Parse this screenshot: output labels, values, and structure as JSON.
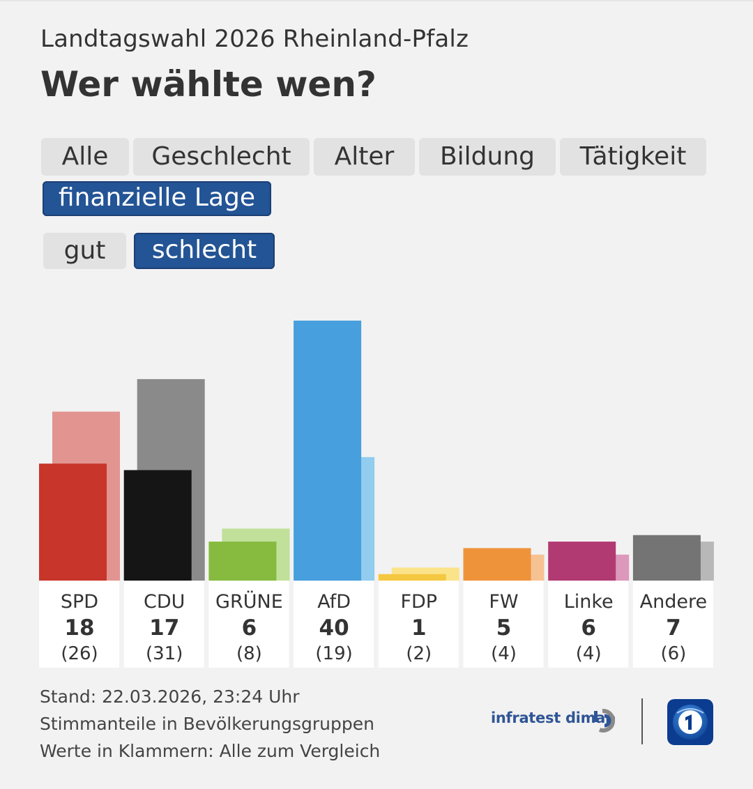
{
  "header": {
    "subtitle": "Landtagswahl 2026 Rheinland-Pfalz",
    "title": "Wer wählte wen?"
  },
  "filters": {
    "tabs": [
      {
        "label": "Alle",
        "active": false
      },
      {
        "label": "Geschlecht",
        "active": false
      },
      {
        "label": "Alter",
        "active": false
      },
      {
        "label": "Bildung",
        "active": false
      },
      {
        "label": "Tätigkeit",
        "active": false
      },
      {
        "label": "finanzielle Lage",
        "active": true
      }
    ],
    "subtabs": [
      {
        "label": "gut",
        "active": false
      },
      {
        "label": "schlecht",
        "active": true
      }
    ]
  },
  "chart_data": {
    "type": "bar",
    "title": "Wer wählte wen?",
    "categories": [
      "SPD",
      "CDU",
      "GRÜNE",
      "AfD",
      "FDP",
      "FW",
      "Linke",
      "Andere"
    ],
    "series": [
      {
        "name": "schlecht",
        "values": [
          18,
          17,
          6,
          40,
          1,
          5,
          6,
          7
        ],
        "display": [
          "18",
          "17",
          "6",
          "40",
          "1",
          "5",
          "6",
          "7"
        ]
      },
      {
        "name": "Alle",
        "values": [
          26,
          31,
          8,
          19,
          2,
          4,
          4,
          6
        ],
        "display": [
          "(26)",
          "(31)",
          "(8)",
          "(19)",
          "(2)",
          "(4)",
          "(4)",
          "(6)"
        ]
      }
    ],
    "colors": {
      "main": [
        "#c8352a",
        "#151515",
        "#86bb3f",
        "#479fdd",
        "#f5c842",
        "#ef933b",
        "#b23a72",
        "#747474"
      ],
      "compare": [
        "#e19490",
        "#8a8a8a",
        "#c1e099",
        "#92ccee",
        "#fbe38a",
        "#f7c292",
        "#dc99bb",
        "#b8b8b8"
      ]
    },
    "ylim": [
      0,
      40
    ],
    "xlabel": "",
    "ylabel": ""
  },
  "footer": {
    "lines": [
      "Stand: 22.03.2026, 23:24 Uhr",
      "Stimmanteile in Bevölkerungsgruppen",
      "Werte in Klammern: Alle zum Vergleich"
    ],
    "source": "infratest dimap"
  },
  "icons": {
    "infratest": "infratest-dimap-logo-icon",
    "ard": "ard-das-erste-logo-icon"
  }
}
